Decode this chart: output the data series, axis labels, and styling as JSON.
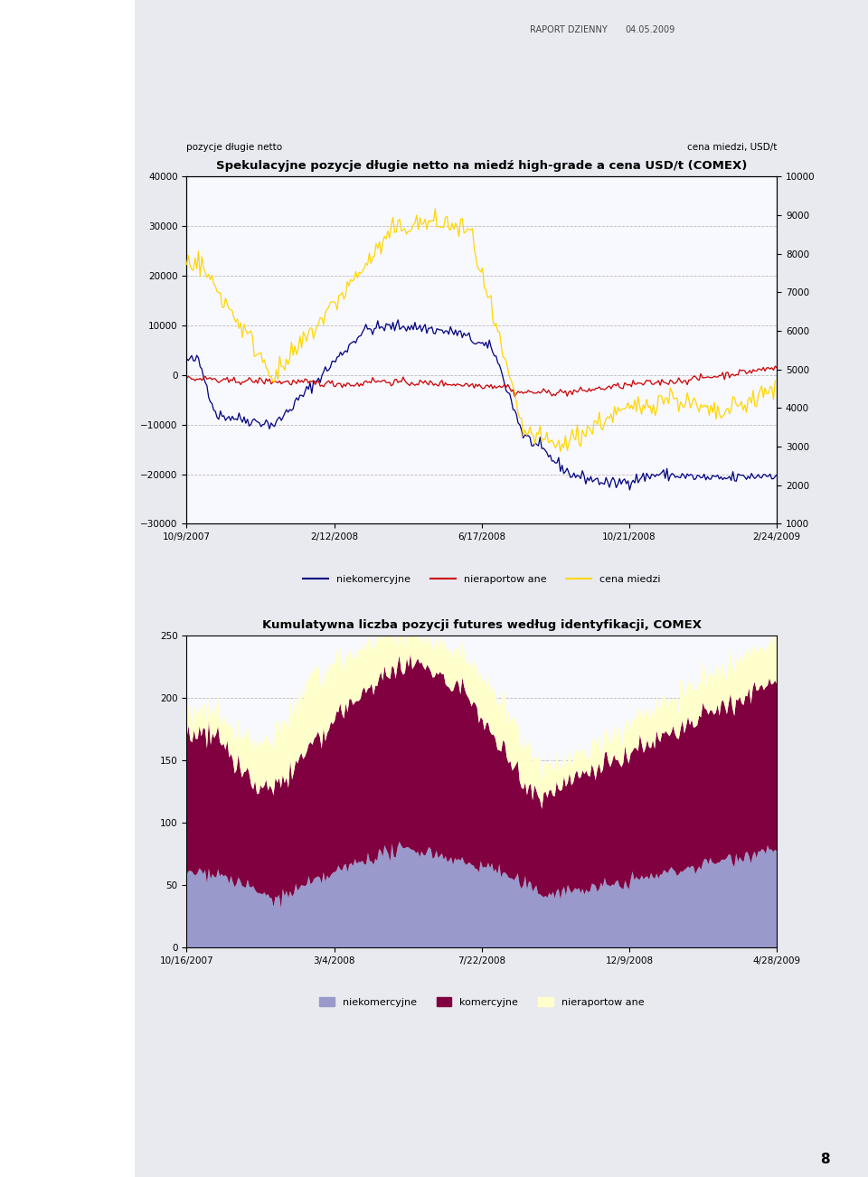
{
  "chart1": {
    "title": "Spekulacyjne pozycje długie netto na miedź high-grade a cena USD/t (COMEX)",
    "ylabel_left": "pozycje długie netto",
    "ylabel_right": "cena miedzi, USD/t",
    "ylim_left": [
      -30000,
      40000
    ],
    "ylim_right": [
      1000,
      10000
    ],
    "yticks_left": [
      -30000,
      -20000,
      -10000,
      0,
      10000,
      20000,
      30000,
      40000
    ],
    "yticks_right": [
      1000,
      2000,
      3000,
      4000,
      5000,
      6000,
      7000,
      8000,
      9000,
      10000
    ],
    "xtick_labels": [
      "10/9/2007",
      "2/12/2008",
      "6/17/2008",
      "10/21/2008",
      "2/24/2009"
    ],
    "legend": [
      "niekomercyjne",
      "nieraportow ane",
      "cena miedzi"
    ],
    "line_colors": [
      "#000080",
      "#CC0000",
      "#FFD700"
    ]
  },
  "chart2": {
    "title": "Kumulatywna liczba pozycji futures według identyfikacji, COMEX",
    "ylim": [
      0,
      250
    ],
    "yticks": [
      0,
      50,
      100,
      150,
      200,
      250
    ],
    "xtick_labels": [
      "10/16/2007",
      "3/4/2008",
      "7/22/2008",
      "12/9/2008",
      "4/28/2009"
    ],
    "legend": [
      "niekomercyjne",
      "komercyjne",
      "nieraportow ane"
    ],
    "area_colors": [
      "#9999CC",
      "#800040",
      "#FFFFCC"
    ]
  },
  "page_bg": "#E8E8F0",
  "chart_bg": "#F8F8FF",
  "grid_color": "#BBBBBB"
}
